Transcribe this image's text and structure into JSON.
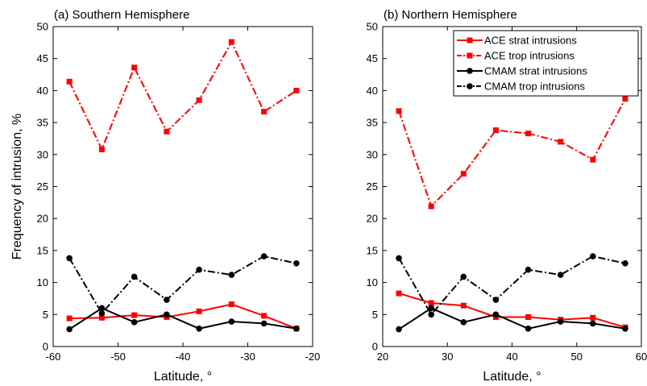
{
  "colors": {
    "ace": "#ff0000",
    "cmam": "#000000"
  },
  "chart_data": [
    {
      "type": "line",
      "title": "(a) Southern Hemisphere",
      "xlabel": "Latitude, °",
      "ylabel": "Frequency of intrusion, %",
      "xlim": [
        -60,
        -20
      ],
      "ylim": [
        0,
        50
      ],
      "xticks": [
        "-60",
        "-50",
        "-40",
        "-30",
        "-20"
      ],
      "yticks": [
        "0",
        "5",
        "10",
        "15",
        "20",
        "25",
        "30",
        "35",
        "40",
        "45",
        "50"
      ],
      "x": [
        -57.5,
        -52.5,
        -47.5,
        -42.5,
        -37.5,
        -32.5,
        -27.5,
        -22.5
      ],
      "series": [
        {
          "name": "ACE strat intrusions",
          "model": "ace",
          "style": "solid",
          "marker": "square",
          "values": [
            4.4,
            4.5,
            4.9,
            4.6,
            5.5,
            6.6,
            4.8,
            2.8
          ]
        },
        {
          "name": "ACE trop intrusions",
          "model": "ace",
          "style": "dashdot",
          "marker": "square",
          "values": [
            41.4,
            30.8,
            43.6,
            33.6,
            38.5,
            47.6,
            36.7,
            40.0
          ]
        },
        {
          "name": "CMAM strat intrusions",
          "model": "cmam",
          "style": "solid",
          "marker": "circle",
          "values": [
            2.7,
            6.0,
            3.8,
            5.0,
            2.8,
            3.9,
            3.6,
            2.8
          ]
        },
        {
          "name": "CMAM trop intrusions",
          "model": "cmam",
          "style": "dashdot",
          "marker": "circle",
          "values": [
            13.8,
            5.2,
            10.9,
            7.3,
            12.0,
            11.2,
            14.1,
            13.0
          ]
        }
      ],
      "legend": "none"
    },
    {
      "type": "line",
      "title": "(b) Northern Hemisphere",
      "xlabel": "Latitude, °",
      "ylabel": "",
      "xlim": [
        20,
        60
      ],
      "ylim": [
        0,
        50
      ],
      "xticks": [
        "20",
        "30",
        "40",
        "50",
        "60"
      ],
      "yticks": [
        "0",
        "5",
        "10",
        "15",
        "20",
        "25",
        "30",
        "35",
        "40",
        "45",
        "50"
      ],
      "x": [
        22.5,
        27.5,
        32.5,
        37.5,
        42.5,
        47.5,
        52.5,
        57.5
      ],
      "series": [
        {
          "name": "ACE strat intrusions",
          "model": "ace",
          "style": "solid",
          "marker": "square",
          "values": [
            8.3,
            6.8,
            6.4,
            4.6,
            4.6,
            4.2,
            4.5,
            3.0
          ]
        },
        {
          "name": "ACE trop intrusions",
          "model": "ace",
          "style": "dashdot",
          "marker": "square",
          "values": [
            36.8,
            21.9,
            27.0,
            33.8,
            33.3,
            32.0,
            29.2,
            38.7
          ]
        },
        {
          "name": "CMAM strat intrusions",
          "model": "cmam",
          "style": "solid",
          "marker": "circle",
          "values": [
            2.7,
            6.0,
            3.8,
            5.0,
            2.8,
            3.9,
            3.6,
            2.8
          ]
        },
        {
          "name": "CMAM trop intrusions",
          "model": "cmam",
          "style": "dashdot",
          "marker": "circle",
          "values": [
            13.8,
            5.0,
            10.9,
            7.3,
            12.0,
            11.2,
            14.1,
            13.0
          ]
        }
      ],
      "legend": "top-right"
    }
  ]
}
